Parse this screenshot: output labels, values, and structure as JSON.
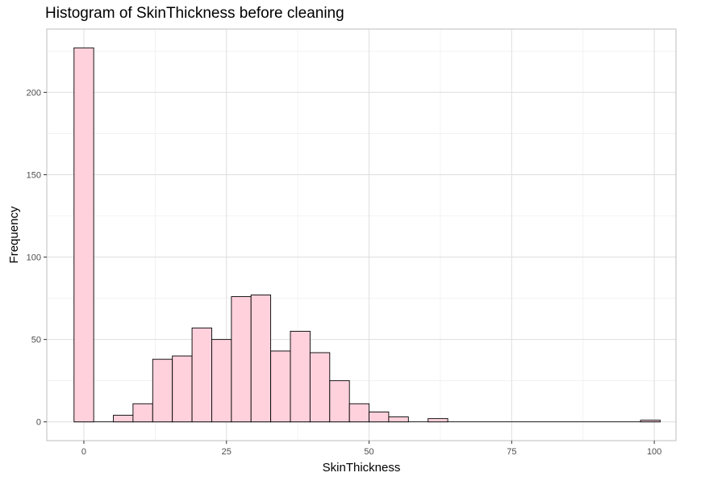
{
  "chart_data": {
    "type": "bar",
    "title": "Histogram of SkinThickness before cleaning",
    "xlabel": "SkinThickness",
    "ylabel": "Frequency",
    "bin_width": 3.45,
    "bins": [
      {
        "x": 0,
        "count": 227
      },
      {
        "x": 3.45,
        "count": 0
      },
      {
        "x": 6.9,
        "count": 4
      },
      {
        "x": 10.34,
        "count": 11
      },
      {
        "x": 13.79,
        "count": 38
      },
      {
        "x": 17.24,
        "count": 40
      },
      {
        "x": 20.69,
        "count": 57
      },
      {
        "x": 24.14,
        "count": 50
      },
      {
        "x": 27.59,
        "count": 76
      },
      {
        "x": 31.03,
        "count": 77
      },
      {
        "x": 34.48,
        "count": 43
      },
      {
        "x": 37.93,
        "count": 55
      },
      {
        "x": 41.38,
        "count": 42
      },
      {
        "x": 44.83,
        "count": 25
      },
      {
        "x": 48.28,
        "count": 11
      },
      {
        "x": 51.72,
        "count": 6
      },
      {
        "x": 55.17,
        "count": 3
      },
      {
        "x": 58.62,
        "count": 0
      },
      {
        "x": 62.07,
        "count": 2
      },
      {
        "x": 99.31,
        "count": 1
      }
    ],
    "xlim": [
      -6.5,
      103.8
    ],
    "ylim": [
      -11.4,
      238.4
    ],
    "x_ticks": [
      0,
      25,
      50,
      75,
      100
    ],
    "x_tick_labels": [
      "0",
      "25",
      "50",
      "75",
      "100"
    ],
    "y_ticks": [
      0,
      50,
      100,
      150,
      200
    ],
    "y_tick_labels": [
      "0",
      "50",
      "100",
      "150",
      "200"
    ],
    "grid": true,
    "colors": {
      "bar_fill": "#ffd1dc",
      "bar_stroke": "#000000",
      "grid_major": "#dedede",
      "grid_minor": "#efefef",
      "panel_border": "#bdbdbd"
    }
  }
}
